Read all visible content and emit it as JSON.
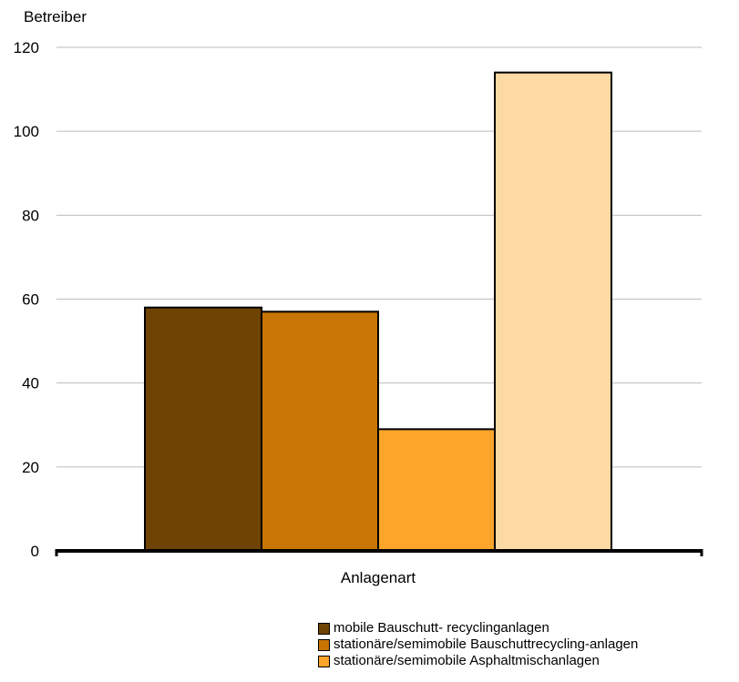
{
  "chart_data": {
    "type": "bar",
    "title": "",
    "ylabel": "Betreiber",
    "xlabel": "Anlagenart",
    "ylim": [
      0,
      120
    ],
    "yticks": [
      0,
      20,
      40,
      60,
      80,
      100,
      120
    ],
    "grid": true,
    "legend_position": "bottom-right",
    "series": [
      {
        "name": "mobile Bauschutt- recyclinganlagen",
        "value": 58,
        "color": "#6e4303"
      },
      {
        "name": "stationäre/semimobile  Bauschuttrecycling-anlagen",
        "value": 57,
        "color": "#c87503"
      },
      {
        "name": "stationäre/semimobile  Asphaltmischanlagen",
        "value": 29,
        "color": "#fca52a"
      },
      {
        "name": "",
        "value": 114,
        "color": "#fdd9a3"
      }
    ]
  }
}
